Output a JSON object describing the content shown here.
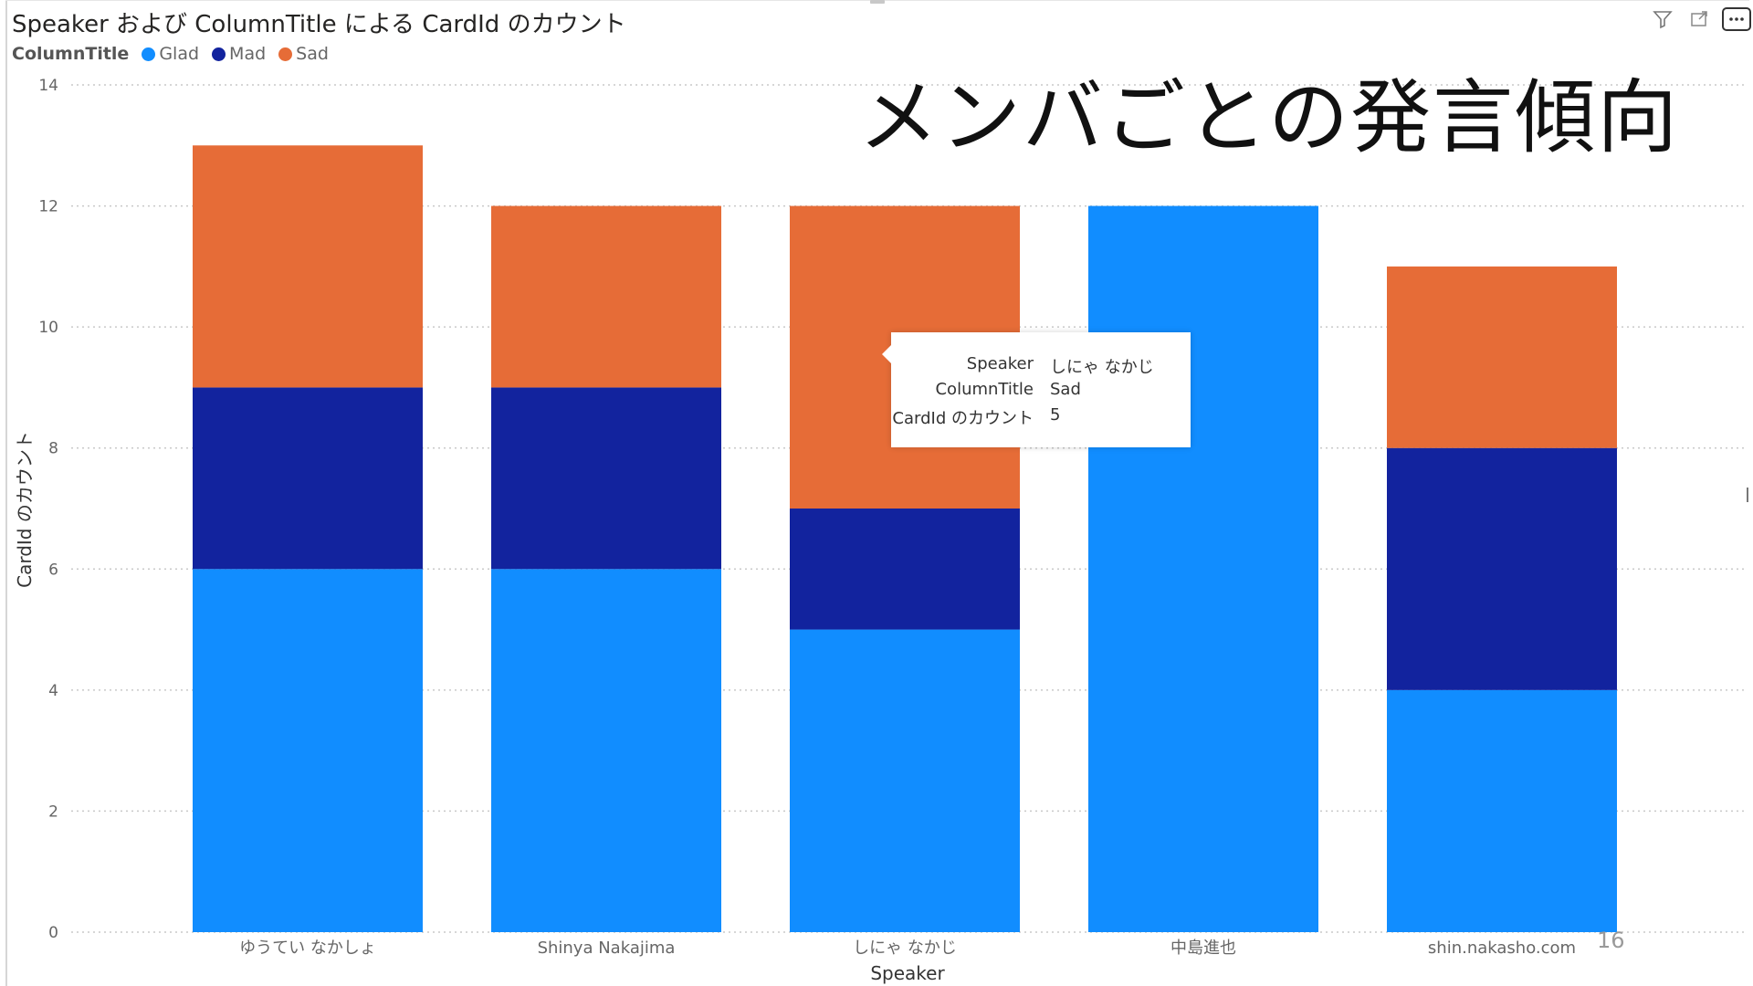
{
  "visual": {
    "title": "Speaker および ColumnTitle による CardId のカウント",
    "legend_title": "ColumnTitle",
    "overlay_heading": "メンバごとの発言傾向",
    "slide_number": "16",
    "toolbar_icons": [
      "filter-icon",
      "focus-mode-icon",
      "more-options-icon"
    ]
  },
  "chart_data": {
    "type": "bar",
    "stacked": true,
    "categories": [
      "ゆうてい なかしょ",
      "Shinya Nakajima",
      "しにゃ なかじ",
      "中島進也",
      "shin.nakasho.com"
    ],
    "series": [
      {
        "name": "Glad",
        "color": "#118DFF",
        "values": [
          6,
          6,
          5,
          12,
          4
        ]
      },
      {
        "name": "Mad",
        "color": "#12239E",
        "values": [
          3,
          3,
          2,
          0,
          4
        ]
      },
      {
        "name": "Sad",
        "color": "#E66C37",
        "values": [
          4,
          3,
          5,
          0,
          3
        ]
      }
    ],
    "xlabel": "Speaker",
    "ylabel": "CardId のカウント",
    "ylim": [
      0,
      14
    ],
    "yticks": [
      0,
      2,
      4,
      6,
      8,
      10,
      12,
      14
    ],
    "grid": true,
    "legend_position": "top-left"
  },
  "tooltip": {
    "rows": [
      {
        "key": "Speaker",
        "value": "しにゃ なかじ"
      },
      {
        "key": "ColumnTitle",
        "value": "Sad"
      },
      {
        "key": "CardId のカウント",
        "value": "5"
      }
    ]
  }
}
